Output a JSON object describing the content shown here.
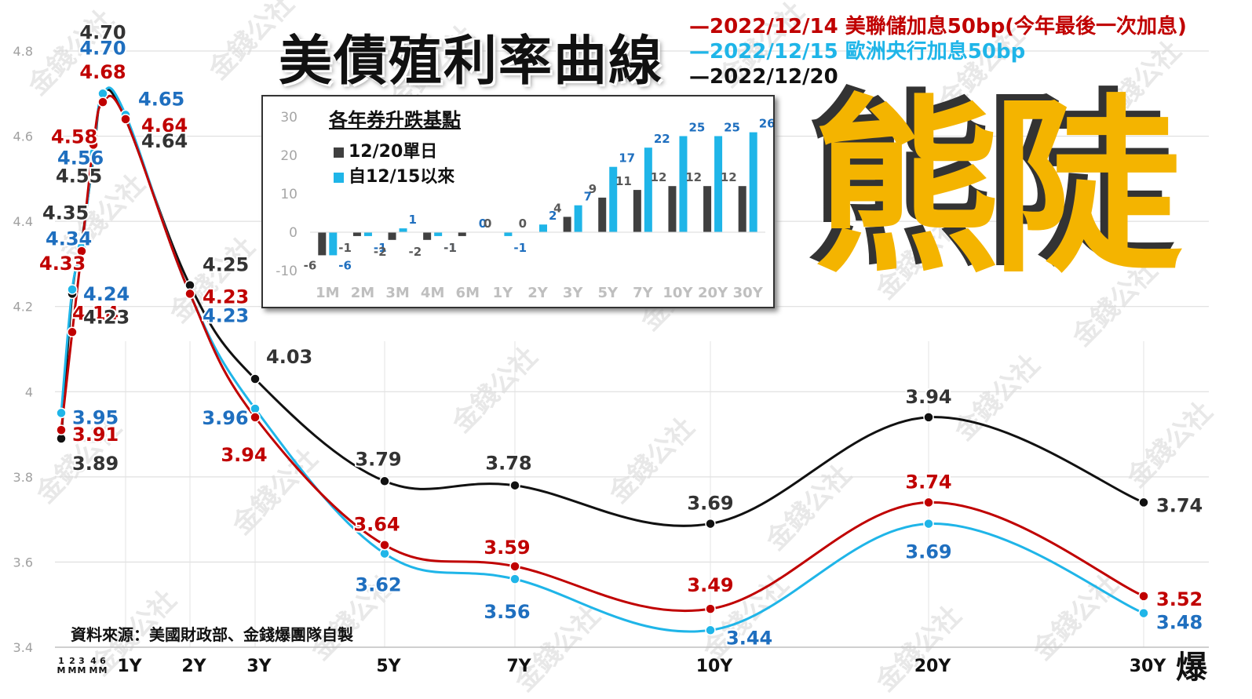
{
  "title": "美債殖利率曲線",
  "big_label": "熊陡",
  "source": "資料來源：美國財政部、金錢爆團隊自製",
  "logo_text": "爆",
  "watermark": "金錢公社",
  "colors": {
    "red": "#c00000",
    "cyan": "#1fb5e8",
    "black": "#111111",
    "blue_label": "#1f6fbf",
    "gold": "#f4b400",
    "bar_dark": "#404040"
  },
  "legend": [
    {
      "label": "2022/12/14 美聯儲加息50bp(今年最後一次加息)",
      "color": "#c00000"
    },
    {
      "label": "2022/12/15 歐洲央行加息50bp",
      "color": "#1fb5e8"
    },
    {
      "label": "2022/12/20",
      "color": "#111111"
    }
  ],
  "chart_data": [
    {
      "type": "line",
      "title": "美債殖利率曲線",
      "categories": [
        "1M",
        "2M",
        "3M",
        "4M",
        "6M",
        "1Y",
        "2Y",
        "3Y",
        "5Y",
        "7Y",
        "10Y",
        "20Y",
        "30Y"
      ],
      "x_labels": [
        "1M",
        "2M",
        "3M",
        "4M",
        "6M",
        "1Y",
        "2Y",
        "3Y",
        "5Y",
        "7Y",
        "10Y",
        "20Y",
        "30Y"
      ],
      "series": [
        {
          "name": "2022/12/14 美聯儲加息50bp(今年最後一次加息)",
          "color": "#c00000",
          "values": [
            3.91,
            4.14,
            4.33,
            4.58,
            4.68,
            4.64,
            4.23,
            3.94,
            3.64,
            3.59,
            3.49,
            3.74,
            3.52
          ]
        },
        {
          "name": "2022/12/15 歐洲央行加息50bp",
          "color": "#1fb5e8",
          "values": [
            3.95,
            4.24,
            4.34,
            4.56,
            4.7,
            4.65,
            4.23,
            3.96,
            3.62,
            3.56,
            3.44,
            3.69,
            3.48
          ]
        },
        {
          "name": "2022/12/20",
          "color": "#111111",
          "values": [
            3.89,
            4.23,
            4.35,
            4.55,
            4.7,
            4.64,
            4.25,
            4.03,
            3.79,
            3.78,
            3.69,
            3.94,
            3.74
          ]
        }
      ],
      "ylim": [
        3.4,
        4.8
      ],
      "yticks": [
        3.4,
        3.6,
        3.8,
        4,
        4.2,
        4.4,
        4.6,
        4.8
      ],
      "ytick_labels": [
        "3.4",
        "3.6",
        "3.8",
        "4",
        "4.2",
        "4.4",
        "4.6",
        "4.8"
      ],
      "grid": true
    },
    {
      "type": "bar",
      "title": "各年券升跌基點",
      "categories": [
        "1M",
        "2M",
        "3M",
        "4M",
        "6M",
        "1Y",
        "2Y",
        "3Y",
        "5Y",
        "7Y",
        "10Y",
        "20Y",
        "30Y"
      ],
      "series": [
        {
          "name": "12/20單日",
          "color": "#404040",
          "values": [
            -6,
            -1,
            -2,
            -2,
            -1,
            0,
            0,
            4,
            9,
            11,
            12,
            12,
            12
          ]
        },
        {
          "name": "自12/15以來",
          "color": "#1fb5e8",
          "values": [
            -6,
            -1,
            1,
            -1,
            0,
            -1,
            2,
            7,
            17,
            22,
            25,
            25,
            26
          ]
        }
      ],
      "ylim": [
        -10,
        30
      ],
      "yticks": [
        -10,
        0,
        10,
        20,
        30
      ],
      "ytick_labels": [
        "-10",
        "0",
        "10",
        "20",
        "30"
      ],
      "grid": false
    }
  ]
}
